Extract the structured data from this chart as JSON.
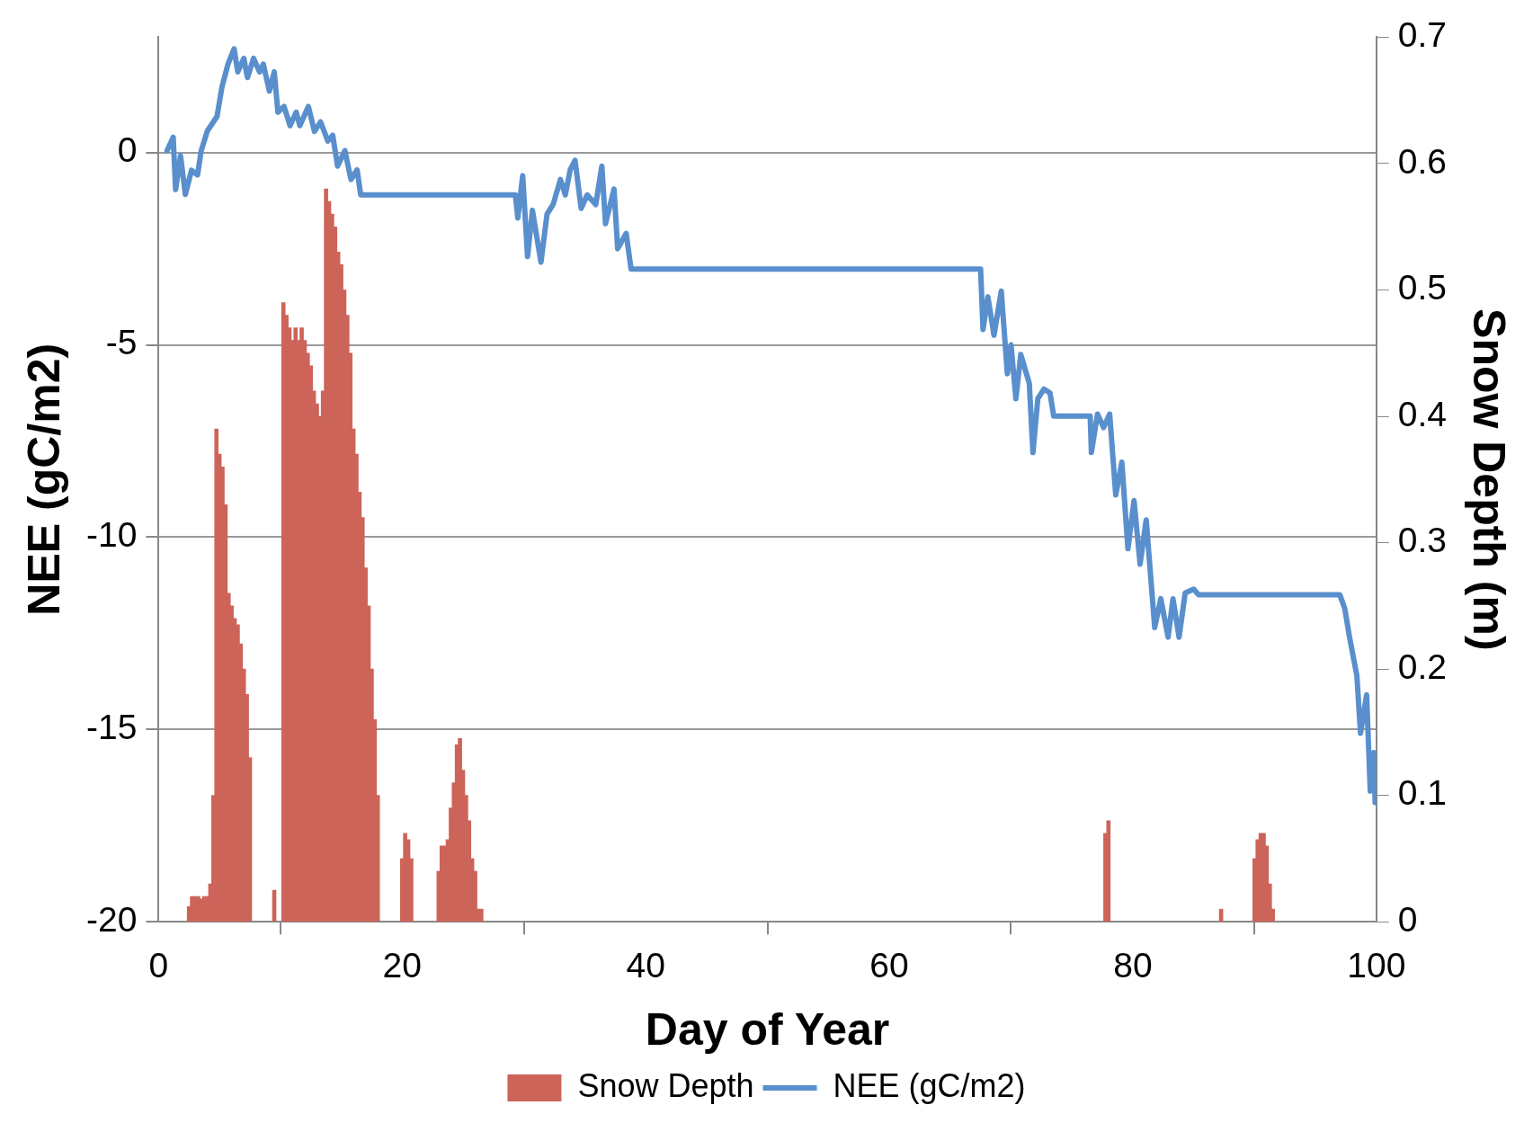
{
  "chart_data": {
    "type": "line",
    "xlabel": "Day of Year",
    "ylabel": "NEE (gC/m2)",
    "y2label": "Snow Depth (m)",
    "xlim": [
      0,
      100
    ],
    "xticks": [
      0,
      20,
      40,
      60,
      80,
      100
    ],
    "ylim": [
      -20,
      3
    ],
    "yticks": [
      -20,
      -15,
      -10,
      -5,
      0
    ],
    "y2lim": [
      0,
      0.7
    ],
    "y2ticks": [
      0,
      0.1,
      0.2,
      0.3,
      0.4,
      0.5,
      0.6,
      0.7
    ],
    "grid": "y",
    "legend": "bottom",
    "series": [
      {
        "name": "Snow Depth",
        "type": "bar",
        "axis": "y2",
        "color": "#cd6459",
        "x": [
          2.5,
          2.75,
          3.0,
          3.25,
          3.5,
          3.75,
          4.0,
          4.25,
          4.5,
          4.75,
          5.0,
          5.25,
          5.5,
          5.75,
          6.0,
          6.25,
          6.5,
          6.75,
          7.0,
          7.25,
          7.5,
          9.5,
          10.25,
          10.5,
          10.75,
          11.0,
          11.25,
          11.5,
          11.75,
          12.0,
          12.25,
          12.5,
          12.75,
          13.0,
          13.25,
          13.5,
          13.75,
          14.0,
          14.25,
          14.5,
          14.75,
          15.0,
          15.25,
          15.5,
          15.75,
          16.0,
          16.25,
          16.5,
          16.75,
          17.0,
          17.25,
          17.5,
          17.75,
          18.0,
          20.0,
          20.25,
          20.5,
          20.75,
          23.0,
          23.25,
          23.5,
          23.75,
          24.0,
          24.25,
          24.5,
          24.75,
          25.0,
          25.25,
          25.5,
          25.75,
          26.0,
          26.25,
          26.5,
          77.75,
          78.0,
          87.25,
          90.0,
          90.25,
          90.5,
          90.75,
          91.0,
          91.25,
          91.5
        ],
        "values": [
          0.012,
          0.02,
          0.02,
          0.02,
          0.018,
          0.02,
          0.02,
          0.03,
          0.1,
          0.39,
          0.37,
          0.36,
          0.33,
          0.26,
          0.25,
          0.24,
          0.235,
          0.22,
          0.2,
          0.18,
          0.13,
          0.025,
          0.49,
          0.48,
          0.47,
          0.46,
          0.47,
          0.46,
          0.47,
          0.46,
          0.45,
          0.44,
          0.42,
          0.41,
          0.4,
          0.42,
          0.58,
          0.57,
          0.56,
          0.55,
          0.53,
          0.52,
          0.5,
          0.48,
          0.45,
          0.39,
          0.37,
          0.34,
          0.32,
          0.28,
          0.25,
          0.2,
          0.16,
          0.1,
          0.05,
          0.07,
          0.065,
          0.05,
          0.04,
          0.06,
          0.06,
          0.065,
          0.09,
          0.11,
          0.14,
          0.145,
          0.12,
          0.1,
          0.08,
          0.05,
          0.04,
          0.01,
          0.01,
          0.07,
          0.08,
          0.01,
          0.05,
          0.065,
          0.07,
          0.07,
          0.06,
          0.03,
          0.01
        ]
      },
      {
        "name": "NEE (gC/m2)",
        "color": "#5a8fcd",
        "x": [
          0.7,
          1.2,
          1.4,
          1.8,
          2.2,
          2.7,
          3.2,
          3.5,
          4.0,
          4.8,
          5.2,
          5.7,
          6.2,
          6.5,
          7.0,
          7.3,
          7.8,
          8.3,
          8.6,
          9.1,
          9.5,
          9.8,
          10.3,
          10.8,
          11.3,
          11.6,
          12.3,
          12.8,
          13.3,
          13.9,
          14.3,
          14.7,
          15.3,
          15.8,
          16.3,
          16.6,
          29.3,
          29.5,
          29.9,
          30.3,
          30.7,
          31.4,
          31.9,
          32.4,
          33.0,
          33.4,
          33.8,
          34.2,
          34.7,
          35.2,
          35.9,
          36.4,
          36.7,
          37.4,
          37.7,
          38.4,
          38.8,
          67.5,
          67.7,
          68.1,
          68.6,
          69.2,
          69.7,
          70.0,
          70.4,
          70.8,
          71.5,
          71.8,
          72.2,
          72.7,
          73.2,
          73.5,
          76.5,
          76.6,
          77.1,
          77.6,
          78.1,
          78.6,
          79.1,
          79.6,
          80.1,
          80.6,
          81.1,
          81.8,
          82.3,
          82.9,
          83.3,
          83.8,
          84.3,
          85.0,
          85.4,
          97.0,
          97.4,
          97.8,
          98.4,
          98.7,
          99.2,
          99.5,
          99.8,
          99.9
        ],
        "values": [
          0.05,
          0.4,
          -0.96,
          -0.08,
          -1.09,
          -0.46,
          -0.58,
          0.05,
          0.56,
          0.94,
          1.7,
          2.3,
          2.7,
          2.1,
          2.45,
          1.95,
          2.45,
          2.1,
          2.3,
          1.6,
          2.1,
          1.05,
          1.2,
          0.7,
          1.05,
          0.7,
          1.2,
          0.55,
          0.8,
          0.3,
          0.45,
          -0.35,
          0.05,
          -0.7,
          -0.45,
          -1.1,
          -1.1,
          -1.7,
          -0.6,
          -2.7,
          -1.5,
          -2.85,
          -1.6,
          -1.35,
          -0.7,
          -1.1,
          -0.45,
          -0.2,
          -1.45,
          -1.1,
          -1.35,
          -0.35,
          -1.85,
          -0.95,
          -2.5,
          -2.1,
          -3.03,
          -3.03,
          -4.6,
          -3.75,
          -4.75,
          -3.6,
          -5.75,
          -5.0,
          -6.4,
          -5.25,
          -6.0,
          -7.8,
          -6.4,
          -6.15,
          -6.25,
          -6.85,
          -6.85,
          -7.8,
          -6.8,
          -7.15,
          -6.8,
          -8.9,
          -8.05,
          -10.3,
          -9.05,
          -10.7,
          -9.55,
          -12.35,
          -11.6,
          -12.6,
          -11.6,
          -12.6,
          -11.45,
          -11.35,
          -11.5,
          -11.5,
          -11.85,
          -12.6,
          -13.6,
          -15.1,
          -14.1,
          -16.6,
          -15.6,
          -16.9
        ]
      }
    ]
  }
}
